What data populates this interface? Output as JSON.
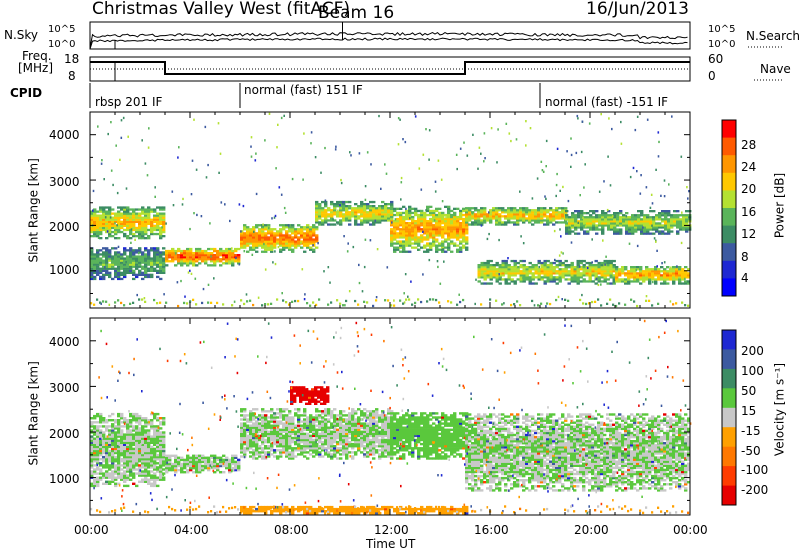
{
  "header": {
    "station": "Christmas Valley West (fitACF)",
    "beam": "Beam 16",
    "date": "16/Jun/2013"
  },
  "top_panel": {
    "nsky_label": "N.Sky",
    "nsearch_label": "N.Search",
    "scale_high": "10^5",
    "scale_low": "10^0",
    "freq_label_1": "Freq.",
    "freq_label_2": "[MHz]",
    "freq_ticks": [
      "18",
      "8"
    ],
    "nave_label": "Nave",
    "nave_ticks": [
      "60",
      "0"
    ],
    "cpid_label": "CPID",
    "modes": [
      "rbsp 201 IF",
      "normal (fast) 151 IF",
      "normal (fast) -151 IF"
    ]
  },
  "axes": {
    "x_ticks": [
      "00:00",
      "04:00",
      "08:00",
      "12:00",
      "16:00",
      "20:00",
      "00:00"
    ],
    "xlabel": "Time UT",
    "ylabel": "Slant Range [km]",
    "y_ticks": [
      "1000",
      "2000",
      "3000",
      "4000"
    ]
  },
  "power_colorbar": {
    "label": "Power [dB]",
    "ticks": [
      "28",
      "24",
      "20",
      "16",
      "12",
      "8",
      "4"
    ],
    "colors": [
      "#ff0000",
      "#ff5a00",
      "#ff9600",
      "#ffc800",
      "#b4e132",
      "#5ab45a",
      "#3c8c64",
      "#3c5aa0",
      "#1e28d2",
      "#0000ff"
    ]
  },
  "velocity_colorbar": {
    "label": "Velocity [m s⁻¹]",
    "ticks": [
      "200",
      "100",
      "50",
      "15",
      "-15",
      "-50",
      "-100",
      "-200"
    ],
    "colors": [
      "#1e28d2",
      "#3c5aa0",
      "#3c8c64",
      "#5ac83c",
      "#c8c8c8",
      "#ffa000",
      "#ff7800",
      "#ff3c00",
      "#e60000"
    ]
  },
  "chart_data": [
    {
      "type": "heatmap",
      "title": "Power",
      "xlabel": "Time UT",
      "ylabel": "Slant Range [km]",
      "xlim": [
        "00:00",
        "24:00"
      ],
      "ylim": [
        180,
        4500
      ],
      "colorbar": {
        "label": "Power [dB]",
        "range": [
          0,
          30
        ]
      },
      "scatter_bands": [
        {
          "t_start": 0.0,
          "t_end": 3.0,
          "range_low_km": 1700,
          "range_high_km": 2400,
          "power_db": 22
        },
        {
          "t_start": 0.0,
          "t_end": 3.0,
          "range_low_km": 800,
          "range_high_km": 1500,
          "power_db": 14
        },
        {
          "t_start": 3.0,
          "t_end": 6.0,
          "range_low_km": 1100,
          "range_high_km": 1500,
          "power_db": 28
        },
        {
          "t_start": 6.0,
          "t_end": 9.0,
          "range_low_km": 1400,
          "range_high_km": 2000,
          "power_db": 26
        },
        {
          "t_start": 9.0,
          "t_end": 12.0,
          "range_low_km": 2000,
          "range_high_km": 2500,
          "power_db": 20
        },
        {
          "t_start": 12.0,
          "t_end": 15.0,
          "range_low_km": 1400,
          "range_high_km": 2400,
          "power_db": 24
        },
        {
          "t_start": 15.0,
          "t_end": 19.0,
          "range_low_km": 2000,
          "range_high_km": 2400,
          "power_db": 22
        },
        {
          "t_start": 15.5,
          "t_end": 21.0,
          "range_low_km": 700,
          "range_high_km": 1200,
          "power_db": 20
        },
        {
          "t_start": 19.0,
          "t_end": 24.0,
          "range_low_km": 1800,
          "range_high_km": 2300,
          "power_db": 18
        },
        {
          "t_start": 21.0,
          "t_end": 24.0,
          "range_low_km": 700,
          "range_high_km": 1100,
          "power_db": 24
        }
      ]
    },
    {
      "type": "heatmap",
      "title": "Velocity",
      "xlabel": "Time UT",
      "ylabel": "Slant Range [km]",
      "xlim": [
        "00:00",
        "24:00"
      ],
      "ylim": [
        180,
        4500
      ],
      "colorbar": {
        "label": "Velocity [m s⁻¹]",
        "range": [
          -200,
          200
        ]
      },
      "scatter_bands": [
        {
          "t_start": 0.0,
          "t_end": 3.0,
          "range_low_km": 800,
          "range_high_km": 2400,
          "velocity": 0
        },
        {
          "t_start": 3.0,
          "t_end": 6.0,
          "range_low_km": 1100,
          "range_high_km": 1500,
          "velocity": 0
        },
        {
          "t_start": 6.0,
          "t_end": 12.0,
          "range_low_km": 1400,
          "range_high_km": 2500,
          "velocity": 0
        },
        {
          "t_start": 8.0,
          "t_end": 9.5,
          "range_low_km": 2600,
          "range_high_km": 3000,
          "velocity": -200
        },
        {
          "t_start": 12.0,
          "t_end": 15.0,
          "range_low_km": 1400,
          "range_high_km": 2400,
          "velocity": 20
        },
        {
          "t_start": 15.0,
          "t_end": 24.0,
          "range_low_km": 700,
          "range_high_km": 2400,
          "velocity": 0
        },
        {
          "t_start": 6.0,
          "t_end": 15.0,
          "range_low_km": 200,
          "range_high_km": 350,
          "velocity": -60
        }
      ]
    }
  ]
}
